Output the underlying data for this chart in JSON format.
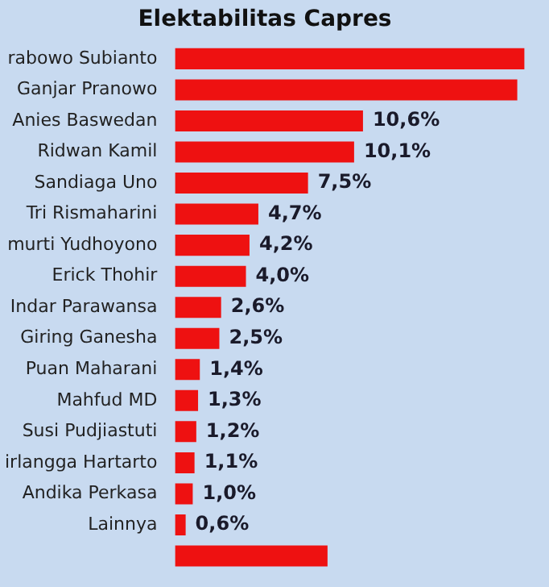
{
  "chart_data": {
    "type": "bar",
    "orientation": "horizontal",
    "title": "Elektabilitas Capres",
    "categories": [
      "rabowo Subianto",
      "Ganjar Pranowo",
      "Anies Baswedan",
      "Ridwan Kamil",
      "Sandiaga Uno",
      "Tri Rismaharini",
      "murti Yudhoyono",
      "Erick Thohir",
      "Indar Parawansa",
      "Giring Ganesha",
      "Puan Maharani",
      "Mahfud MD",
      "Susi Pudjiastuti",
      "irlangga Hartarto",
      "Andika Perkasa",
      "Lainnya",
      null
    ],
    "values": [
      19.7,
      19.3,
      10.6,
      10.1,
      7.5,
      4.7,
      4.2,
      4.0,
      2.6,
      2.5,
      1.4,
      1.3,
      1.2,
      1.1,
      1.0,
      0.6,
      8.6
    ],
    "value_labels": [
      null,
      null,
      "10,6%",
      "10,1%",
      "7,5%",
      "4,7%",
      "4,2%",
      "4,0%",
      "2,6%",
      "2,5%",
      "1,4%",
      "1,3%",
      "1,2%",
      "1,1%",
      "1,0%",
      "0,6%",
      null
    ],
    "color": "#ee1111",
    "grid": false,
    "legend": false
  }
}
